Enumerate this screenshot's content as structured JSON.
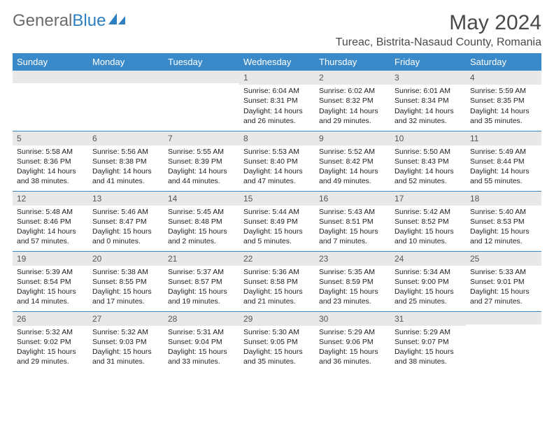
{
  "brand": {
    "name_part1": "General",
    "name_part2": "Blue"
  },
  "title": "May 2024",
  "location": "Tureac, Bistrita-Nasaud County, Romania",
  "colors": {
    "header_blue": "#3a8ac9",
    "daynum_bg": "#e8e8e8",
    "text_gray": "#4a4a4a",
    "logo_gray": "#6b6b6b",
    "logo_blue": "#2d7fc1"
  },
  "day_headers": [
    "Sunday",
    "Monday",
    "Tuesday",
    "Wednesday",
    "Thursday",
    "Friday",
    "Saturday"
  ],
  "weeks": [
    [
      {
        "n": "",
        "sr": "",
        "ss": "",
        "dl": ""
      },
      {
        "n": "",
        "sr": "",
        "ss": "",
        "dl": ""
      },
      {
        "n": "",
        "sr": "",
        "ss": "",
        "dl": ""
      },
      {
        "n": "1",
        "sr": "Sunrise: 6:04 AM",
        "ss": "Sunset: 8:31 PM",
        "dl": "Daylight: 14 hours and 26 minutes."
      },
      {
        "n": "2",
        "sr": "Sunrise: 6:02 AM",
        "ss": "Sunset: 8:32 PM",
        "dl": "Daylight: 14 hours and 29 minutes."
      },
      {
        "n": "3",
        "sr": "Sunrise: 6:01 AM",
        "ss": "Sunset: 8:34 PM",
        "dl": "Daylight: 14 hours and 32 minutes."
      },
      {
        "n": "4",
        "sr": "Sunrise: 5:59 AM",
        "ss": "Sunset: 8:35 PM",
        "dl": "Daylight: 14 hours and 35 minutes."
      }
    ],
    [
      {
        "n": "5",
        "sr": "Sunrise: 5:58 AM",
        "ss": "Sunset: 8:36 PM",
        "dl": "Daylight: 14 hours and 38 minutes."
      },
      {
        "n": "6",
        "sr": "Sunrise: 5:56 AM",
        "ss": "Sunset: 8:38 PM",
        "dl": "Daylight: 14 hours and 41 minutes."
      },
      {
        "n": "7",
        "sr": "Sunrise: 5:55 AM",
        "ss": "Sunset: 8:39 PM",
        "dl": "Daylight: 14 hours and 44 minutes."
      },
      {
        "n": "8",
        "sr": "Sunrise: 5:53 AM",
        "ss": "Sunset: 8:40 PM",
        "dl": "Daylight: 14 hours and 47 minutes."
      },
      {
        "n": "9",
        "sr": "Sunrise: 5:52 AM",
        "ss": "Sunset: 8:42 PM",
        "dl": "Daylight: 14 hours and 49 minutes."
      },
      {
        "n": "10",
        "sr": "Sunrise: 5:50 AM",
        "ss": "Sunset: 8:43 PM",
        "dl": "Daylight: 14 hours and 52 minutes."
      },
      {
        "n": "11",
        "sr": "Sunrise: 5:49 AM",
        "ss": "Sunset: 8:44 PM",
        "dl": "Daylight: 14 hours and 55 minutes."
      }
    ],
    [
      {
        "n": "12",
        "sr": "Sunrise: 5:48 AM",
        "ss": "Sunset: 8:46 PM",
        "dl": "Daylight: 14 hours and 57 minutes."
      },
      {
        "n": "13",
        "sr": "Sunrise: 5:46 AM",
        "ss": "Sunset: 8:47 PM",
        "dl": "Daylight: 15 hours and 0 minutes."
      },
      {
        "n": "14",
        "sr": "Sunrise: 5:45 AM",
        "ss": "Sunset: 8:48 PM",
        "dl": "Daylight: 15 hours and 2 minutes."
      },
      {
        "n": "15",
        "sr": "Sunrise: 5:44 AM",
        "ss": "Sunset: 8:49 PM",
        "dl": "Daylight: 15 hours and 5 minutes."
      },
      {
        "n": "16",
        "sr": "Sunrise: 5:43 AM",
        "ss": "Sunset: 8:51 PM",
        "dl": "Daylight: 15 hours and 7 minutes."
      },
      {
        "n": "17",
        "sr": "Sunrise: 5:42 AM",
        "ss": "Sunset: 8:52 PM",
        "dl": "Daylight: 15 hours and 10 minutes."
      },
      {
        "n": "18",
        "sr": "Sunrise: 5:40 AM",
        "ss": "Sunset: 8:53 PM",
        "dl": "Daylight: 15 hours and 12 minutes."
      }
    ],
    [
      {
        "n": "19",
        "sr": "Sunrise: 5:39 AM",
        "ss": "Sunset: 8:54 PM",
        "dl": "Daylight: 15 hours and 14 minutes."
      },
      {
        "n": "20",
        "sr": "Sunrise: 5:38 AM",
        "ss": "Sunset: 8:55 PM",
        "dl": "Daylight: 15 hours and 17 minutes."
      },
      {
        "n": "21",
        "sr": "Sunrise: 5:37 AM",
        "ss": "Sunset: 8:57 PM",
        "dl": "Daylight: 15 hours and 19 minutes."
      },
      {
        "n": "22",
        "sr": "Sunrise: 5:36 AM",
        "ss": "Sunset: 8:58 PM",
        "dl": "Daylight: 15 hours and 21 minutes."
      },
      {
        "n": "23",
        "sr": "Sunrise: 5:35 AM",
        "ss": "Sunset: 8:59 PM",
        "dl": "Daylight: 15 hours and 23 minutes."
      },
      {
        "n": "24",
        "sr": "Sunrise: 5:34 AM",
        "ss": "Sunset: 9:00 PM",
        "dl": "Daylight: 15 hours and 25 minutes."
      },
      {
        "n": "25",
        "sr": "Sunrise: 5:33 AM",
        "ss": "Sunset: 9:01 PM",
        "dl": "Daylight: 15 hours and 27 minutes."
      }
    ],
    [
      {
        "n": "26",
        "sr": "Sunrise: 5:32 AM",
        "ss": "Sunset: 9:02 PM",
        "dl": "Daylight: 15 hours and 29 minutes."
      },
      {
        "n": "27",
        "sr": "Sunrise: 5:32 AM",
        "ss": "Sunset: 9:03 PM",
        "dl": "Daylight: 15 hours and 31 minutes."
      },
      {
        "n": "28",
        "sr": "Sunrise: 5:31 AM",
        "ss": "Sunset: 9:04 PM",
        "dl": "Daylight: 15 hours and 33 minutes."
      },
      {
        "n": "29",
        "sr": "Sunrise: 5:30 AM",
        "ss": "Sunset: 9:05 PM",
        "dl": "Daylight: 15 hours and 35 minutes."
      },
      {
        "n": "30",
        "sr": "Sunrise: 5:29 AM",
        "ss": "Sunset: 9:06 PM",
        "dl": "Daylight: 15 hours and 36 minutes."
      },
      {
        "n": "31",
        "sr": "Sunrise: 5:29 AM",
        "ss": "Sunset: 9:07 PM",
        "dl": "Daylight: 15 hours and 38 minutes."
      },
      {
        "n": "",
        "sr": "",
        "ss": "",
        "dl": ""
      }
    ]
  ]
}
